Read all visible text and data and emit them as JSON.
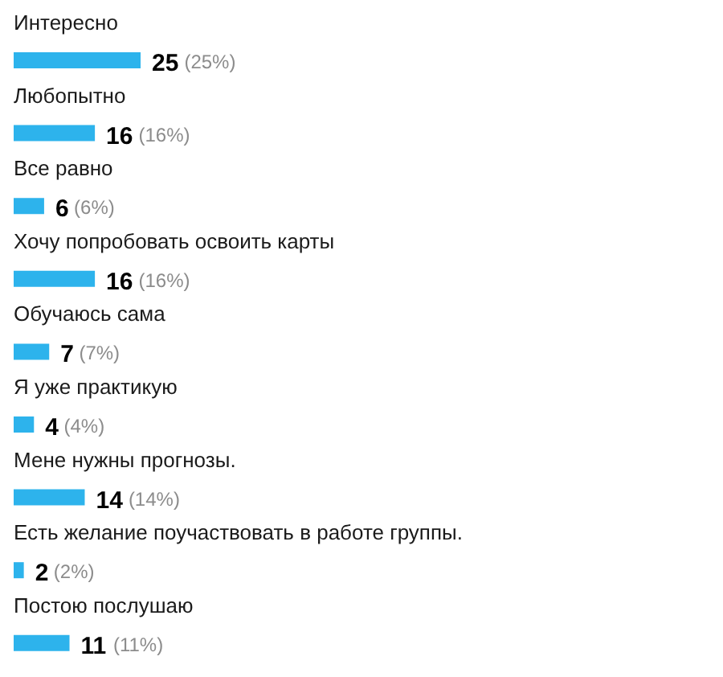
{
  "chart_data": {
    "type": "bar",
    "orientation": "horizontal",
    "categories": [
      "Интересно",
      "Любопытно",
      "Все равно",
      "Хочу попробовать освоить карты",
      "Обучаюсь сама",
      "Я уже практикую",
      "Мене нужны прогнозы.",
      "Есть желание поучаствовать в работе группы.",
      "Постою послушаю"
    ],
    "values": [
      25,
      16,
      6,
      16,
      7,
      4,
      14,
      2,
      11
    ],
    "color": "#2db3ec",
    "data_labels": true,
    "annotations": [
      {
        "text": "(25%)",
        "x": 25,
        "y": "Интересно"
      },
      {
        "text": "(16%)",
        "x": 16,
        "y": "Любопытно"
      },
      {
        "text": "(6%)",
        "x": 6,
        "y": "Все равно"
      },
      {
        "text": "(16%)",
        "x": 16,
        "y": "Хочу попробовать освоить карты"
      },
      {
        "text": "(7%)",
        "x": 7,
        "y": "Обучаюсь сама"
      },
      {
        "text": "(4%)",
        "x": 4,
        "y": "Я уже практикую"
      },
      {
        "text": "(14%)",
        "x": 14,
        "y": "Мене нужны прогнозы."
      },
      {
        "text": "(2%)",
        "x": 2,
        "y": "Есть желание поучаствовать в работе группы."
      },
      {
        "text": "(11%)",
        "x": 11,
        "y": "Постою послушаю"
      }
    ]
  }
}
